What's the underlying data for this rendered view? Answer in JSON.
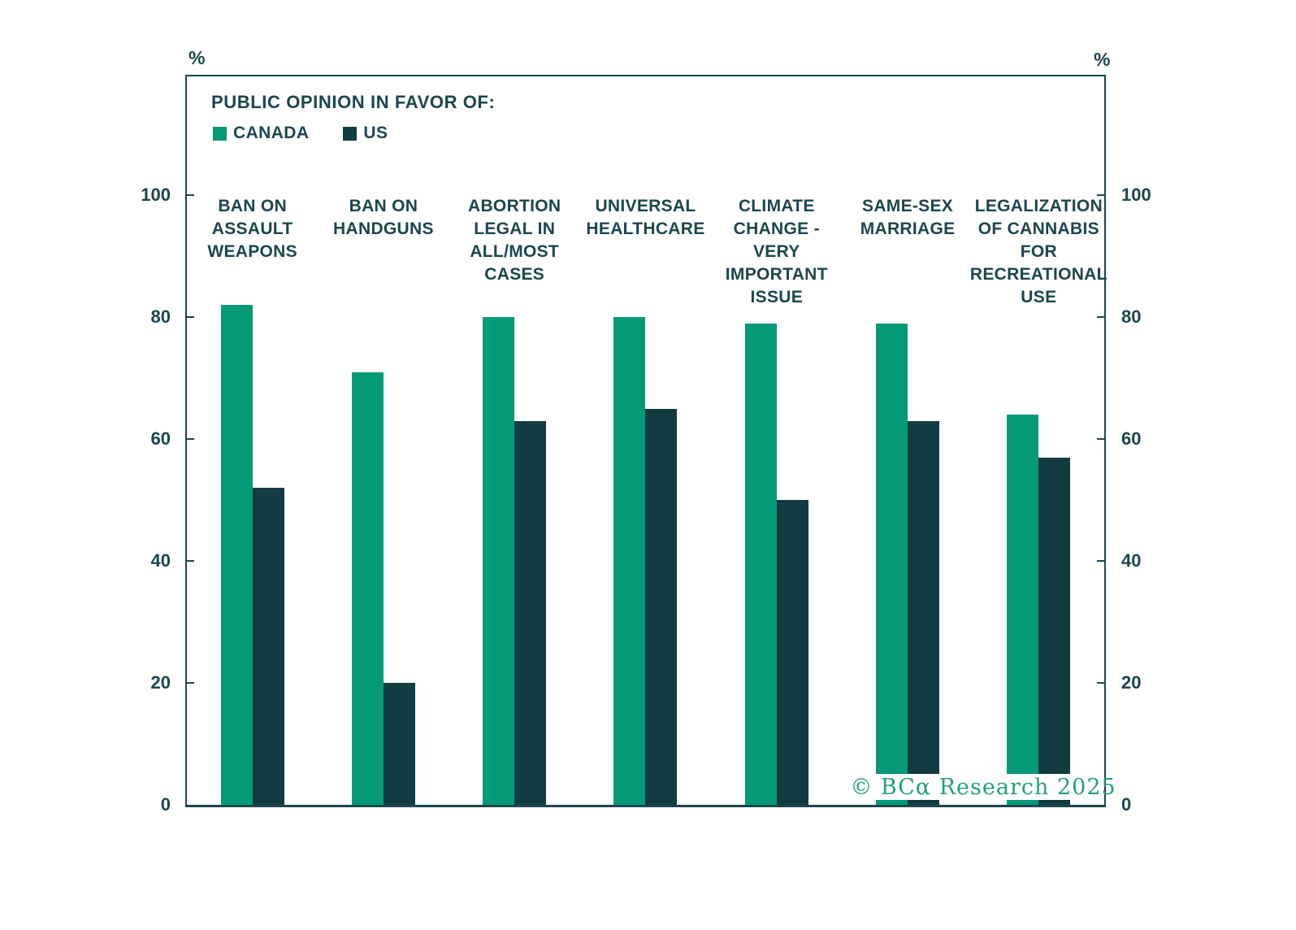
{
  "chart_data": {
    "type": "bar",
    "title": "PUBLIC OPINION IN FAVOR OF:",
    "axis_unit_left": "%",
    "axis_unit_right": "%",
    "categories": [
      "BAN ON\nASSAULT\nWEAPONS",
      "BAN ON\nHANDGUNS",
      "ABORTION\nLEGAL IN\nALL/MOST\nCASES",
      "UNIVERSAL\nHEALTHCARE",
      "CLIMATE\nCHANGE -\nVERY\nIMPORTANT\nISSUE",
      "SAME-SEX\nMARRIAGE",
      "LEGALIZATION\nOF CANNABIS\nFOR\nRECREATIONAL\nUSE"
    ],
    "series": [
      {
        "name": "CANADA",
        "color": "#049a78",
        "values": [
          82,
          71,
          80,
          80,
          79,
          79,
          64
        ]
      },
      {
        "name": "US",
        "color": "#123c42",
        "values": [
          52,
          20,
          63,
          65,
          50,
          63,
          57
        ]
      }
    ],
    "y_ticks": [
      0,
      20,
      40,
      60,
      80,
      100
    ],
    "ylim": [
      0,
      119
    ],
    "grid": false,
    "legend_position": "top-left"
  },
  "watermark": {
    "text": "© BCα Research 2025",
    "color": "#23a07c"
  },
  "colors": {
    "text": "#1b4650",
    "axis": "#1b4650",
    "background": "#ffffff"
  }
}
